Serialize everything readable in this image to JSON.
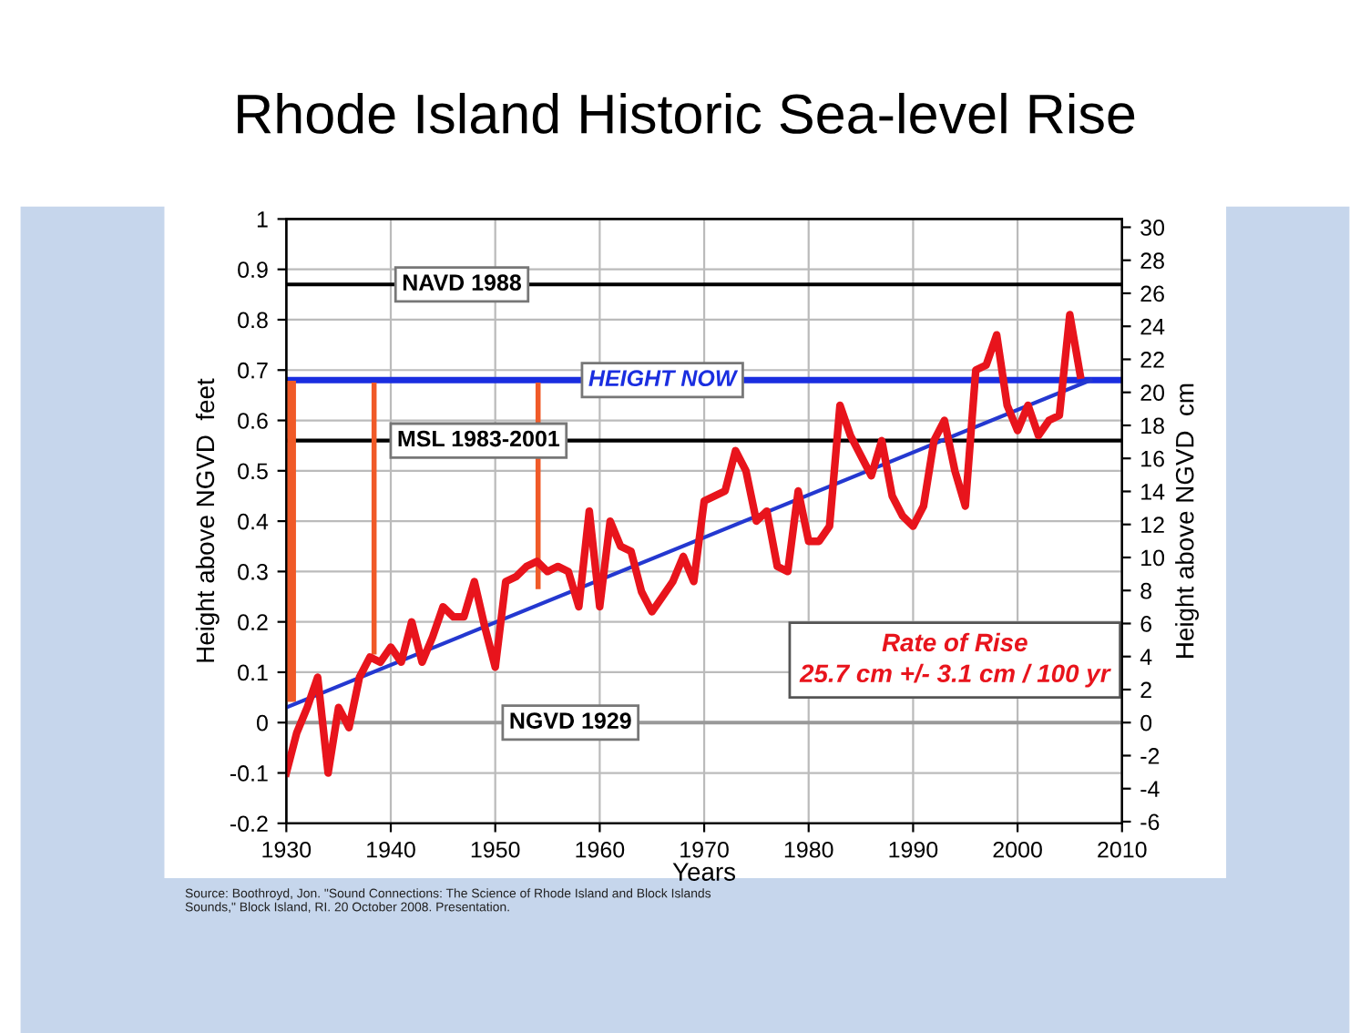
{
  "chart_data": {
    "type": "line",
    "title": "Rhode Island Historic Sea-level Rise",
    "xlabel": "Years",
    "ylabel": "Height above NGVD  feet",
    "y2label": "Height above NGVD  cm",
    "xlim": [
      1930,
      2010
    ],
    "xticks": [
      1930,
      1940,
      1950,
      1960,
      1970,
      1980,
      1990,
      2000,
      2010
    ],
    "ylim": [
      -0.2,
      1
    ],
    "yticks": [
      -0.2,
      -0.1,
      0,
      0.1,
      0.2,
      0.3,
      0.4,
      0.5,
      0.6,
      0.7,
      0.8,
      0.9,
      1
    ],
    "y2lim": [
      -6.1,
      30.5
    ],
    "y2ticks": [
      -6,
      -4,
      -2,
      0,
      2,
      4,
      6,
      8,
      10,
      12,
      14,
      16,
      18,
      20,
      22,
      24,
      26,
      28,
      30
    ],
    "grid": true,
    "marker": "none",
    "line_style": "solid",
    "series": [
      {
        "color": "#f05a28",
        "x": [
          1930.5,
          1930.5
        ],
        "values": [
          0.05,
          0.67
        ]
      },
      {
        "color": "#f05a28",
        "x": [
          1938.4,
          1938.4
        ],
        "values": [
          0.14,
          0.67
        ]
      },
      {
        "color": "#f05a28",
        "x": [
          1954.1,
          1954.1
        ],
        "values": [
          0.27,
          0.67
        ]
      },
      {
        "color": "#e8141c",
        "x": [
          1930,
          1931,
          1932,
          1933,
          1934,
          1935,
          1936,
          1937,
          1938,
          1939,
          1940,
          1941,
          1942,
          1943,
          1944,
          1945,
          1946,
          1947,
          1948,
          1949,
          1950,
          1951,
          1952,
          1953,
          1954,
          1955,
          1956,
          1957,
          1958,
          1959,
          1960,
          1961,
          1962,
          1963,
          1964,
          1965,
          1966,
          1967,
          1968,
          1969,
          1970,
          1971,
          1972,
          1973,
          1974,
          1975,
          1976,
          1977,
          1978,
          1979,
          1980,
          1981,
          1982,
          1983,
          1984,
          1985,
          1986,
          1987,
          1988,
          1989,
          1990,
          1991,
          1992,
          1993,
          1994,
          1995,
          1996,
          1997,
          1998,
          1999,
          2000,
          2001,
          2002,
          2003,
          2004,
          2005,
          2006
        ],
        "values": [
          -0.1,
          -0.02,
          0.03,
          0.09,
          -0.1,
          0.03,
          -0.01,
          0.09,
          0.13,
          0.12,
          0.15,
          0.12,
          0.2,
          0.12,
          0.17,
          0.23,
          0.21,
          0.21,
          0.28,
          0.19,
          0.11,
          0.28,
          0.29,
          0.31,
          0.32,
          0.3,
          0.31,
          0.3,
          0.23,
          0.42,
          0.23,
          0.4,
          0.35,
          0.34,
          0.26,
          0.22,
          0.25,
          0.28,
          0.33,
          0.28,
          0.44,
          0.45,
          0.46,
          0.54,
          0.5,
          0.4,
          0.42,
          0.31,
          0.3,
          0.46,
          0.36,
          0.36,
          0.39,
          0.63,
          0.57,
          0.53,
          0.49,
          0.56,
          0.45,
          0.41,
          0.39,
          0.43,
          0.56,
          0.6,
          0.5,
          0.43,
          0.7,
          0.71,
          0.77,
          0.63,
          0.58,
          0.63,
          0.57,
          0.6,
          0.61,
          0.81,
          0.69
        ]
      },
      {
        "color": "#2438d0",
        "x": [
          1930,
          2007
        ],
        "values": [
          0.03,
          0.68
        ]
      }
    ],
    "ref_lines": [
      {
        "axis": "y",
        "value": 0.87,
        "label": "NAVD 1988",
        "color": "#000000"
      },
      {
        "axis": "y",
        "value": 0.68,
        "label": "HEIGHT NOW",
        "color": "#1a2ee0"
      },
      {
        "axis": "y",
        "value": 0.56,
        "label": "MSL 1983-2001",
        "color": "#000000"
      },
      {
        "axis": "y",
        "value": 0,
        "label": "NGVD 1929",
        "color": "#999999"
      }
    ],
    "annotations": [
      "Rate of Rise\n25.7 cm +/- 3.1 cm / 100 yr",
      "Source: Boothroyd, Jon. \"Sound Connections: The Science of Rhode Island and Block Islands Sounds,\" Block Island, RI. 20 October 2008. Presentation."
    ]
  }
}
